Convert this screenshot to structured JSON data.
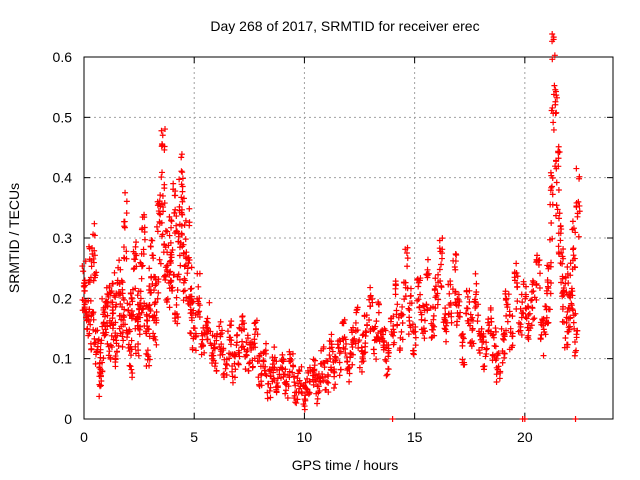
{
  "chart_data": {
    "type": "scatter",
    "title": "Day 268 of 2017, SRMTID for receiver erec",
    "xlabel": "GPS time / hours",
    "ylabel": "SRMTID / TECUs",
    "xlim": [
      0,
      24
    ],
    "ylim": [
      0,
      0.6
    ],
    "xticks": [
      0,
      5,
      10,
      15,
      20
    ],
    "yticks": [
      0,
      0.1,
      0.2,
      0.3,
      0.4,
      0.5,
      0.6
    ],
    "xtick_labels": [
      "0",
      "5",
      "10",
      "15",
      "20"
    ],
    "ytick_labels": [
      "0",
      "0.1",
      "0.2",
      "0.3",
      "0.4",
      "0.5",
      "0.6"
    ],
    "grid": true,
    "marker": "+",
    "color": "#ff0000",
    "series": [
      {
        "name": "SRMTID",
        "description": "dense noisy data; sampled points along the envelope",
        "x": [
          0.0,
          0.1,
          0.2,
          0.3,
          0.4,
          0.5,
          0.6,
          0.7,
          0.8,
          0.9,
          1.0,
          1.1,
          1.2,
          1.3,
          1.4,
          1.5,
          1.6,
          1.7,
          1.8,
          1.9,
          2.0,
          2.1,
          2.2,
          2.3,
          2.4,
          2.5,
          2.6,
          2.7,
          2.8,
          2.9,
          3.0,
          3.1,
          3.2,
          3.3,
          3.4,
          3.5,
          3.6,
          3.7,
          3.8,
          3.9,
          4.0,
          4.1,
          4.2,
          4.3,
          4.4,
          4.5,
          4.6,
          4.7,
          4.8,
          4.9,
          5.0,
          5.2,
          5.4,
          5.6,
          5.8,
          6.0,
          6.2,
          6.4,
          6.6,
          6.8,
          7.0,
          7.2,
          7.4,
          7.6,
          7.8,
          8.0,
          8.2,
          8.4,
          8.6,
          8.8,
          9.0,
          9.2,
          9.4,
          9.6,
          9.8,
          10.0,
          10.2,
          10.4,
          10.6,
          10.8,
          11.0,
          11.2,
          11.4,
          11.6,
          11.8,
          12.0,
          12.2,
          12.4,
          12.6,
          12.8,
          13.0,
          13.2,
          13.4,
          13.6,
          13.8,
          14.0,
          14.2,
          14.4,
          14.6,
          14.8,
          15.0,
          15.2,
          15.4,
          15.6,
          15.8,
          16.0,
          16.2,
          16.4,
          16.6,
          16.8,
          17.0,
          17.2,
          17.4,
          17.6,
          17.8,
          18.0,
          18.2,
          18.4,
          18.6,
          18.8,
          19.0,
          19.2,
          19.4,
          19.6,
          19.8,
          20.0,
          20.2,
          20.4,
          20.6,
          20.8,
          21.0,
          21.1,
          21.2,
          21.3,
          21.4,
          21.5,
          21.6,
          21.7,
          21.8,
          21.9,
          22.0,
          22.1,
          22.2,
          22.3,
          22.4,
          14.0,
          19.9,
          20.0,
          22.3
        ],
        "y": [
          0.22,
          0.19,
          0.17,
          0.24,
          0.15,
          0.28,
          0.12,
          0.06,
          0.1,
          0.18,
          0.16,
          0.2,
          0.13,
          0.21,
          0.17,
          0.11,
          0.23,
          0.15,
          0.19,
          0.32,
          0.16,
          0.1,
          0.2,
          0.25,
          0.14,
          0.18,
          0.22,
          0.29,
          0.17,
          0.12,
          0.21,
          0.25,
          0.16,
          0.2,
          0.31,
          0.36,
          0.42,
          0.28,
          0.22,
          0.3,
          0.26,
          0.34,
          0.2,
          0.28,
          0.38,
          0.33,
          0.24,
          0.3,
          0.22,
          0.18,
          0.15,
          0.2,
          0.13,
          0.16,
          0.12,
          0.11,
          0.14,
          0.1,
          0.13,
          0.09,
          0.12,
          0.15,
          0.11,
          0.1,
          0.13,
          0.08,
          0.1,
          0.06,
          0.09,
          0.07,
          0.08,
          0.06,
          0.1,
          0.05,
          0.07,
          0.04,
          0.06,
          0.08,
          0.05,
          0.09,
          0.07,
          0.11,
          0.08,
          0.1,
          0.13,
          0.09,
          0.12,
          0.15,
          0.11,
          0.14,
          0.18,
          0.13,
          0.16,
          0.12,
          0.1,
          0.14,
          0.19,
          0.15,
          0.24,
          0.18,
          0.14,
          0.2,
          0.16,
          0.22,
          0.17,
          0.21,
          0.26,
          0.15,
          0.19,
          0.23,
          0.17,
          0.12,
          0.18,
          0.15,
          0.2,
          0.14,
          0.11,
          0.16,
          0.13,
          0.09,
          0.12,
          0.18,
          0.15,
          0.22,
          0.17,
          0.2,
          0.16,
          0.19,
          0.24,
          0.14,
          0.18,
          0.22,
          0.35,
          0.56,
          0.48,
          0.4,
          0.31,
          0.25,
          0.2,
          0.15,
          0.22,
          0.18,
          0.3,
          0.14,
          0.36,
          0.0,
          0.0,
          0.0,
          0.0
        ]
      }
    ]
  }
}
